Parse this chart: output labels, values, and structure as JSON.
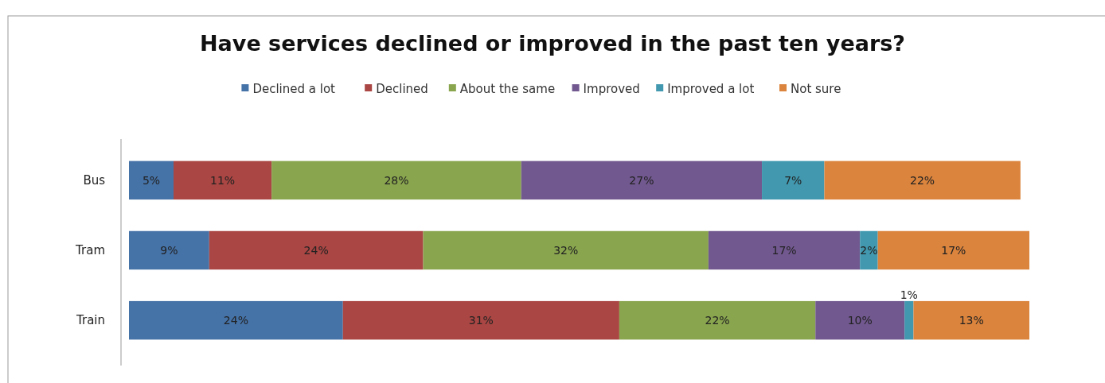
{
  "chart_data": {
    "type": "bar",
    "title": "Have services declined or improved in the past ten years?",
    "orientation": "horizontal",
    "stacked": true,
    "legend": "top",
    "categories": [
      "Bus",
      "Tram",
      "Train"
    ],
    "series": [
      {
        "name": "Declined a lot",
        "color": "#4572a7",
        "values": [
          5,
          9,
          24
        ],
        "value_labels": [
          "5%",
          "9%",
          "24%"
        ]
      },
      {
        "name": "Declined",
        "color": "#aa4643",
        "values": [
          11,
          24,
          31
        ],
        "value_labels": [
          "11%",
          "24%",
          "31%"
        ]
      },
      {
        "name": "About the same",
        "color": "#89a54e",
        "values": [
          28,
          32,
          22
        ],
        "value_labels": [
          "28%",
          "32%",
          "22%"
        ]
      },
      {
        "name": "Improved",
        "color": "#71588f",
        "values": [
          27,
          17,
          10
        ],
        "value_labels": [
          "27%",
          "17%",
          "10%"
        ]
      },
      {
        "name": "Improved a lot",
        "color": "#4198af",
        "values": [
          7,
          2,
          1
        ],
        "value_labels": [
          "7%",
          "2%",
          "1%"
        ]
      },
      {
        "name": "Not sure",
        "color": "#db843d",
        "values": [
          22,
          17,
          13
        ],
        "value_labels": [
          "22%",
          "17%",
          "13%"
        ]
      }
    ]
  }
}
